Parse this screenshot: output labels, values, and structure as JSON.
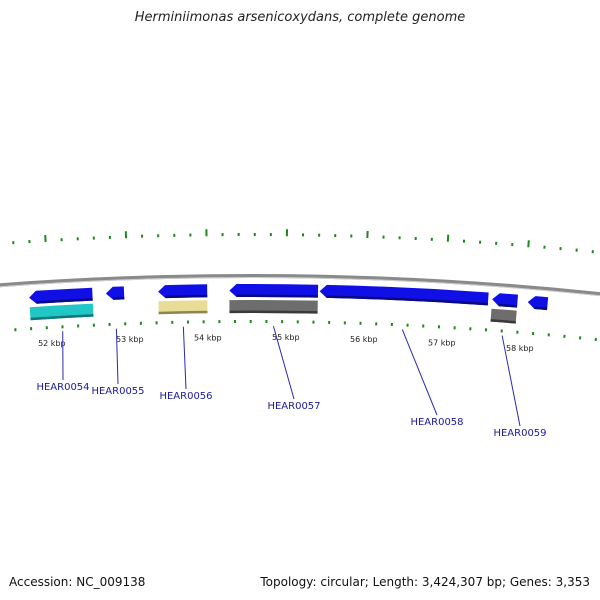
{
  "title": "Herminiimonas arsenicoxydans, complete genome",
  "footer": {
    "accession": "Accession: NC_009138",
    "summary": "Topology: circular; Length: 3,424,307 bp; Genes: 3,353"
  },
  "colors": {
    "forward_cds": "#1010e6",
    "reverse_cds": "#21c7c7",
    "pseudo": "#e8dc96",
    "misc": "#6d6d6d",
    "backbone": "#8a8a8a",
    "ticks": "#1b8a1b",
    "label_line": "#2a2ab0"
  },
  "scale": {
    "unit": "kbp",
    "labels": [
      {
        "kb": 52,
        "text": "52 kbp"
      },
      {
        "kb": 53,
        "text": "53 kbp"
      },
      {
        "kb": 54,
        "text": "54 kbp"
      },
      {
        "kb": 55,
        "text": "55 kbp"
      },
      {
        "kb": 56,
        "text": "56 kbp"
      },
      {
        "kb": 57,
        "text": "57 kbp"
      },
      {
        "kb": 58,
        "text": "58 kbp"
      }
    ]
  },
  "genes": [
    {
      "label": "HEAR0054",
      "start_kb": 51.75,
      "end_kb": 52.55,
      "strand": "-",
      "type": "cds"
    },
    {
      "label": "HEAR0055",
      "start_kb": 52.72,
      "end_kb": 52.95,
      "strand": "-",
      "type": "cds"
    },
    {
      "label": "HEAR0056",
      "start_kb": 53.38,
      "end_kb": 54.0,
      "strand": "-",
      "type": "cds"
    },
    {
      "label": "HEAR0057",
      "start_kb": 54.28,
      "end_kb": 55.4,
      "strand": "-",
      "type": "cds"
    },
    {
      "label": "HEAR0058",
      "start_kb": 55.42,
      "end_kb": 57.55,
      "strand": "-",
      "type": "cds"
    },
    {
      "label": "HEAR0059",
      "start_kb": 57.6,
      "end_kb": 57.92,
      "strand": "-",
      "type": "cds"
    },
    {
      "label": "",
      "start_kb": 58.05,
      "end_kb": 58.3,
      "strand": "-",
      "type": "cds"
    }
  ],
  "lower_features": [
    {
      "start_kb": 51.75,
      "end_kb": 52.55,
      "type": "rna"
    },
    {
      "start_kb": 53.38,
      "end_kb": 54.0,
      "type": "pseudo"
    },
    {
      "start_kb": 54.28,
      "end_kb": 55.4,
      "type": "misc"
    },
    {
      "start_kb": 57.6,
      "end_kb": 57.92,
      "type": "misc"
    }
  ]
}
